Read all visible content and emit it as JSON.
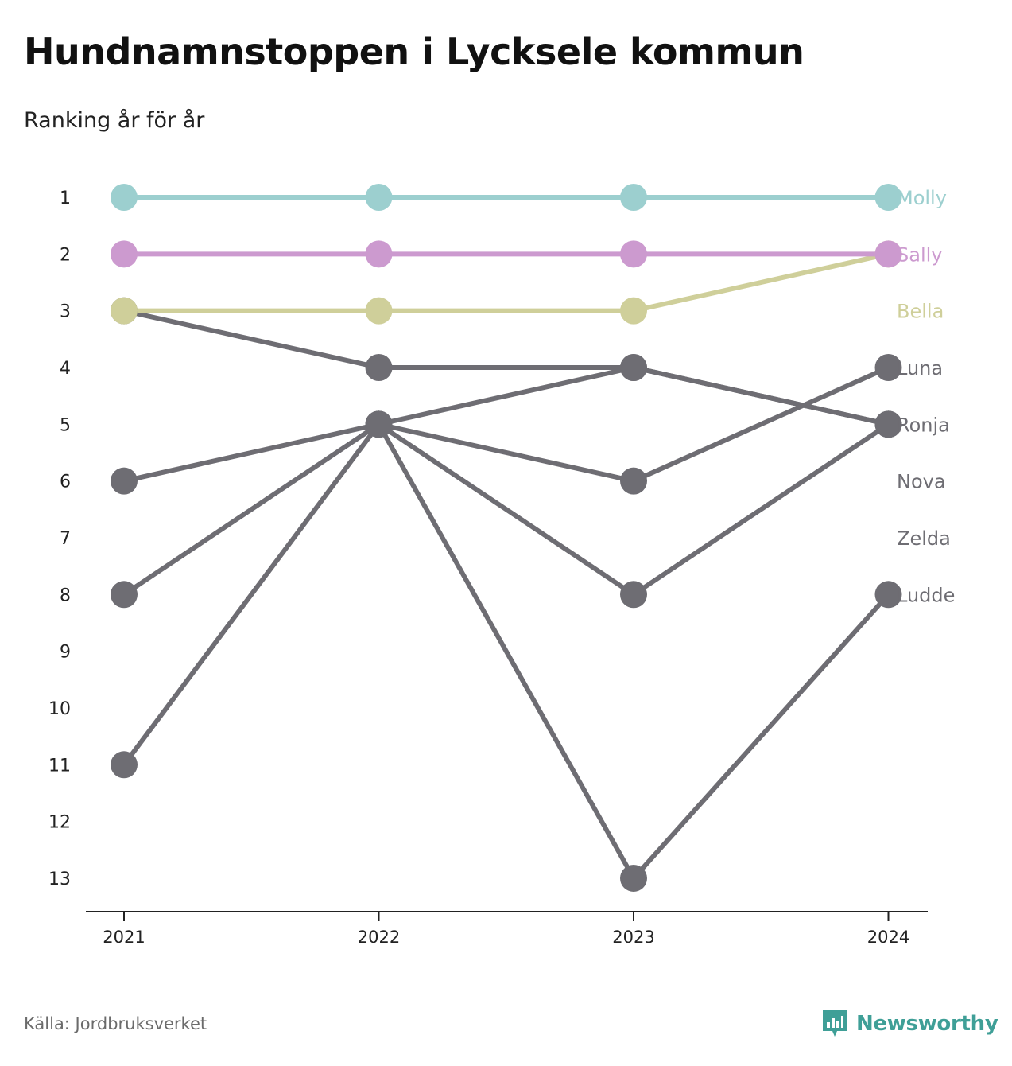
{
  "title": "Hundnamnstoppen i Lycksele kommun",
  "subtitle": "Ranking år för år",
  "source": "Källa: Jordbruksverket",
  "brand": {
    "name": "Newsworthy",
    "icon": "newsworthy-logo-icon",
    "color": "#3f9f97"
  },
  "colors": {
    "molly": "#9ccfcf",
    "sally": "#cc9acf",
    "bella": "#cfcf9a",
    "other": "#6e6d73",
    "axis": "#222222"
  },
  "chart_data": {
    "type": "line",
    "x": [
      "2021",
      "2022",
      "2023",
      "2024"
    ],
    "y_ticks": [
      "1",
      "2",
      "3",
      "4",
      "5",
      "6",
      "7",
      "8",
      "9",
      "10",
      "11",
      "12",
      "13"
    ],
    "ylim": [
      1,
      13
    ],
    "y_reversed": true,
    "grid": false,
    "legend": "direct labels at right end",
    "series": [
      {
        "name": "Molly",
        "values": [
          1,
          1,
          1,
          1
        ],
        "color": "#9ccfcf"
      },
      {
        "name": "Sally",
        "values": [
          2,
          2,
          2,
          2
        ],
        "color": "#cc9acf"
      },
      {
        "name": "Bella",
        "values": [
          3,
          3,
          3,
          2
        ],
        "color": "#cfcf9a"
      },
      {
        "name": "Luna",
        "values": [
          6,
          5,
          6,
          4
        ],
        "color": "#6e6d73"
      },
      {
        "name": "Ronja",
        "values": [
          3,
          4,
          4,
          5
        ],
        "color": "#6e6d73"
      },
      {
        "name": "Nova",
        "values": [
          11,
          5,
          4,
          5
        ],
        "color": "#6e6d73"
      },
      {
        "name": "Zelda",
        "values": [
          8,
          5,
          8,
          5
        ],
        "color": "#6e6d73"
      },
      {
        "name": "Ludde",
        "values": [
          null,
          5,
          13,
          8
        ],
        "color": "#6e6d73"
      }
    ],
    "end_labels": [
      {
        "name": "Molly",
        "rank": 1
      },
      {
        "name": "Sally",
        "rank": 2
      },
      {
        "name": "Bella",
        "rank": 3
      },
      {
        "name": "Luna",
        "rank": 4
      },
      {
        "name": "Ronja",
        "rank": 5
      },
      {
        "name": "Nova",
        "rank": 6
      },
      {
        "name": "Zelda",
        "rank": 7
      },
      {
        "name": "Ludde",
        "rank": 8
      }
    ]
  }
}
